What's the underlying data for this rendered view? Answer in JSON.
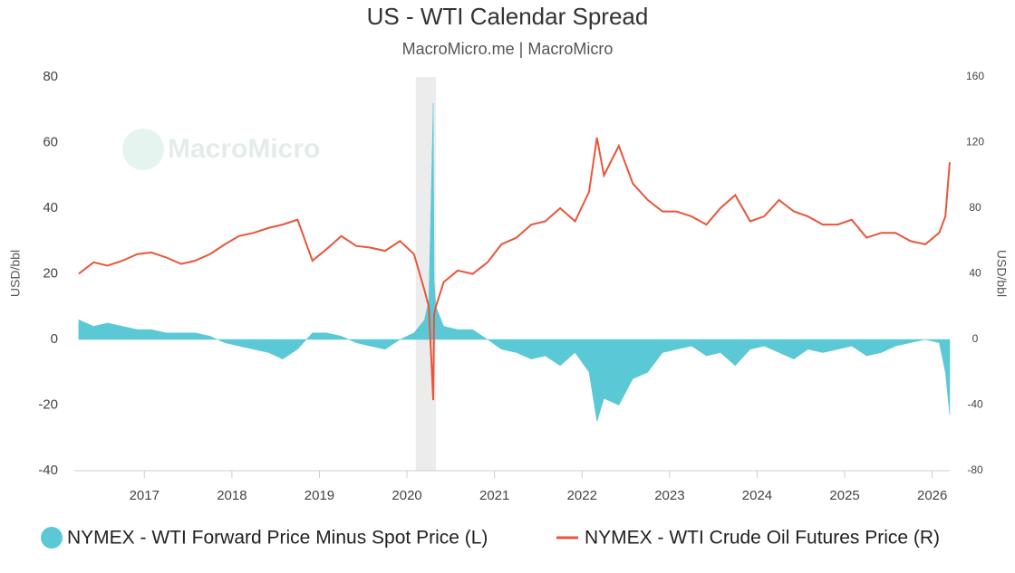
{
  "chart_data": {
    "type": "area_line",
    "title": "US - WTI Calendar Spread",
    "subtitle": "MacroMicro.me | MacroMicro",
    "watermark": "MacroMicro",
    "y_label": "USD/bbl",
    "y2_label": "USD/bbl",
    "x": [
      2016.25,
      2016.42,
      2016.58,
      2016.75,
      2016.92,
      2017.08,
      2017.25,
      2017.42,
      2017.58,
      2017.75,
      2017.92,
      2018.08,
      2018.25,
      2018.42,
      2018.58,
      2018.75,
      2018.92,
      2019.08,
      2019.25,
      2019.42,
      2019.58,
      2019.75,
      2019.92,
      2020.08,
      2020.2,
      2020.25,
      2020.3,
      2020.31,
      2020.33,
      2020.42,
      2020.58,
      2020.75,
      2020.92,
      2021.08,
      2021.25,
      2021.42,
      2021.58,
      2021.75,
      2021.92,
      2022.08,
      2022.17,
      2022.25,
      2022.42,
      2022.58,
      2022.75,
      2022.92,
      2023.08,
      2023.25,
      2023.42,
      2023.58,
      2023.75,
      2023.92,
      2024.08,
      2024.25,
      2024.42,
      2024.58,
      2024.75,
      2024.92,
      2025.08,
      2025.25,
      2025.42,
      2025.58,
      2025.75,
      2025.92,
      2026.08,
      2026.15,
      2026.2
    ],
    "series": [
      {
        "name": "NYMEX - WTI Forward Price Minus Spot Price (L)",
        "color": "#5bc8d6",
        "axis": "y",
        "values": [
          6,
          4,
          5,
          4,
          3,
          3,
          2,
          2,
          2,
          1,
          -1,
          -2,
          -3,
          -4,
          -6,
          -3,
          2,
          2,
          1,
          -1,
          -2,
          -3,
          0,
          2,
          6,
          12,
          72,
          18,
          10,
          4,
          3,
          3,
          0,
          -3,
          -4,
          -6,
          -5,
          -8,
          -4,
          -10,
          -25,
          -18,
          -20,
          -12,
          -10,
          -4,
          -3,
          -2,
          -5,
          -4,
          -8,
          -3,
          -2,
          -4,
          -6,
          -3,
          -4,
          -3,
          -2,
          -5,
          -4,
          -2,
          -1,
          0,
          -1,
          -10,
          -23
        ]
      },
      {
        "name": "NYMEX - WTI Crude Oil Futures Price (R)",
        "color": "#e8553a",
        "axis": "y2",
        "values": [
          40,
          47,
          45,
          48,
          52,
          53,
          50,
          46,
          48,
          52,
          58,
          63,
          65,
          68,
          70,
          73,
          48,
          55,
          63,
          57,
          56,
          54,
          60,
          52,
          30,
          20,
          -37,
          15,
          20,
          35,
          42,
          40,
          47,
          58,
          62,
          70,
          72,
          80,
          72,
          90,
          123,
          100,
          118,
          95,
          85,
          78,
          78,
          75,
          70,
          80,
          88,
          72,
          75,
          85,
          78,
          75,
          70,
          70,
          73,
          62,
          65,
          65,
          60,
          58,
          65,
          75,
          108
        ]
      }
    ],
    "shaded_ranges": [
      [
        2020.1,
        2020.33
      ]
    ],
    "xlim": [
      2016.2,
      2026.2
    ],
    "xticks": [
      2017,
      2018,
      2019,
      2020,
      2021,
      2022,
      2023,
      2024,
      2025,
      2026
    ],
    "ylim": [
      -40,
      80
    ],
    "yticks": [
      -40,
      -20,
      0,
      20,
      40,
      60,
      80
    ],
    "y2lim": [
      -80,
      160
    ],
    "y2ticks": [
      -80,
      -40,
      0,
      40,
      80,
      120,
      160
    ]
  }
}
